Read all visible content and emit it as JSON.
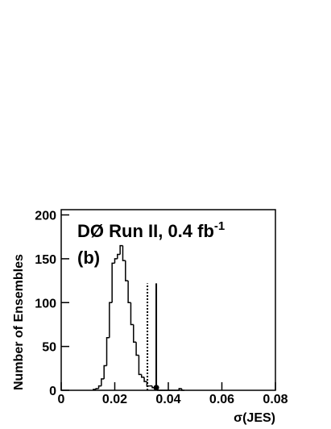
{
  "chart_data": {
    "type": "histogram",
    "title": "DØ Run II, 0.4 fb",
    "title_superscript": "-1",
    "panel_label": "(b)",
    "x_label": "σ(JES)",
    "y_label": "Number of Ensembles",
    "bins": [
      0.012,
      0.013,
      0.014,
      0.015,
      0.016,
      0.017,
      0.018,
      0.019,
      0.02,
      0.021,
      0.022,
      0.023,
      0.024,
      0.025,
      0.026,
      0.027,
      0.028,
      0.029,
      0.03,
      0.031,
      0.032,
      0.033,
      0.034,
      0.035,
      0.036,
      0.037,
      0.038,
      0.039,
      0.04,
      0.041,
      0.042,
      0.043,
      0.044,
      0.045,
      0.046
    ],
    "counts": [
      1,
      2,
      5,
      13,
      28,
      60,
      100,
      145,
      150,
      155,
      165,
      148,
      125,
      100,
      75,
      55,
      40,
      18,
      15,
      10,
      5,
      5,
      3,
      1,
      0,
      0,
      0,
      0,
      0,
      0,
      0,
      0,
      2,
      0
    ],
    "color": "#000000",
    "markers": [
      {
        "x": 0.0322,
        "height": 122,
        "style": "dotted"
      },
      {
        "x": 0.0355,
        "height": 122,
        "style": "solid"
      }
    ],
    "point": {
      "x": 0.0355,
      "y": 3
    },
    "xlim": [
      0,
      0.08
    ],
    "xticks": [
      0,
      0.02,
      0.04,
      0.06,
      0.08
    ],
    "ylim": [
      0,
      206
    ],
    "yticks": [
      0,
      50,
      100,
      150,
      200
    ]
  }
}
